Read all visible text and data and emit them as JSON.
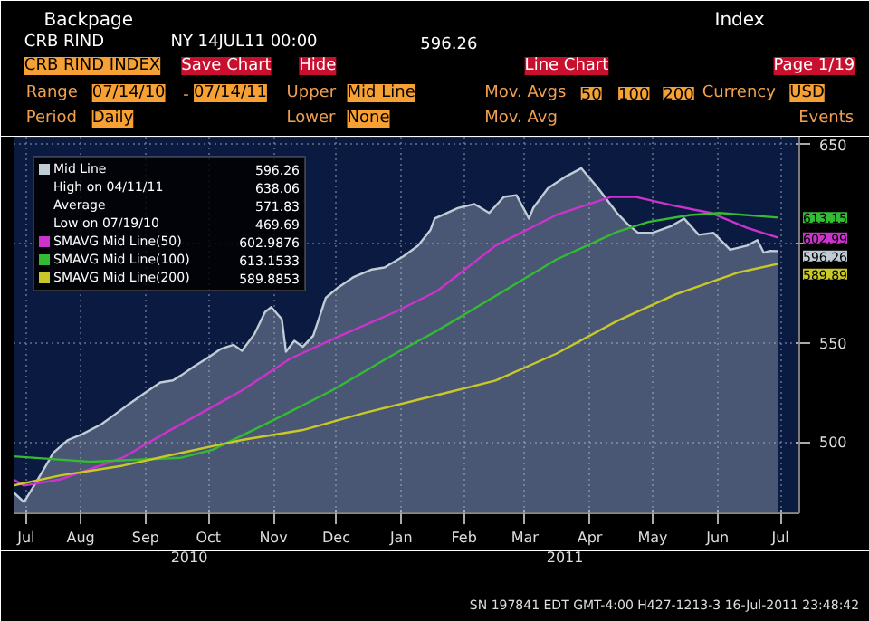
{
  "chart_data": {
    "type": "line",
    "title": "CRB RIND INDEX",
    "xlim": [
      "2010-07-14",
      "2011-07-24"
    ],
    "ylim": [
      464,
      654
    ],
    "xticks": [
      {
        "value": "2010-07-20",
        "label": "Jul"
      },
      {
        "value": "2010-08-15",
        "label": "Aug"
      },
      {
        "value": "2010-09-15",
        "label": "Sep"
      },
      {
        "value": "2010-10-15",
        "label": "Oct"
      },
      {
        "value": "2010-11-15",
        "label": "Nov"
      },
      {
        "value": "2010-12-15",
        "label": "Dec"
      },
      {
        "value": "2011-01-15",
        "label": "Jan"
      },
      {
        "value": "2011-02-14",
        "label": "Feb"
      },
      {
        "value": "2011-03-15",
        "label": "Mar"
      },
      {
        "value": "2011-04-15",
        "label": "Apr"
      },
      {
        "value": "2011-05-15",
        "label": "May"
      },
      {
        "value": "2011-06-15",
        "label": "Jun"
      },
      {
        "value": "2011-07-15",
        "label": "Jul"
      }
    ],
    "yticks": [
      500,
      550,
      {
        "value": 600,
        "label": null
      },
      650
    ],
    "grid": true,
    "legend": "top left",
    "series": [
      {
        "name": "Mid Line",
        "type": "area",
        "color": "#c0ccd6",
        "x": [
          "2010-07-14",
          "2010-07-19",
          "2010-07-25",
          "2010-08-02",
          "2010-08-09",
          "2010-08-16",
          "2010-08-25",
          "2010-08-31",
          "2010-09-07",
          "2010-09-15",
          "2010-09-22",
          "2010-09-28",
          "2010-10-02",
          "2010-10-08",
          "2010-10-15",
          "2010-10-21",
          "2010-10-27",
          "2010-10-31",
          "2010-11-06",
          "2010-11-11",
          "2010-11-14",
          "2010-11-19",
          "2010-11-21",
          "2010-11-25",
          "2010-11-29",
          "2010-12-04",
          "2010-12-10",
          "2010-12-16",
          "2010-12-23",
          "2011-01-01",
          "2011-01-07",
          "2011-01-16",
          "2011-01-23",
          "2011-01-29",
          "2011-01-31",
          "2011-02-11",
          "2011-02-19",
          "2011-02-26",
          "2011-03-05",
          "2011-03-11",
          "2011-03-17",
          "2011-03-19",
          "2011-03-26",
          "2011-04-03",
          "2011-04-11",
          "2011-04-19",
          "2011-04-28",
          "2011-05-03",
          "2011-05-08",
          "2011-05-15",
          "2011-05-24",
          "2011-05-30",
          "2011-06-06",
          "2011-06-13",
          "2011-06-21",
          "2011-06-29",
          "2011-07-04",
          "2011-07-07",
          "2011-07-10",
          "2011-07-14"
        ],
        "values": [
          474.5,
          469.69,
          480,
          494.5,
          501,
          504,
          509,
          513.6,
          519,
          525,
          530,
          531,
          533.6,
          538,
          542.7,
          547,
          549,
          546,
          554.5,
          565.5,
          568,
          562,
          545.5,
          551,
          548,
          553.6,
          572.7,
          578,
          583,
          587,
          588,
          593.6,
          599,
          607,
          612.7,
          618,
          620,
          615.5,
          623.6,
          624.5,
          612.7,
          618,
          628,
          633.6,
          638.06,
          628,
          615.5,
          610,
          605.5,
          605.5,
          609,
          612.7,
          604.5,
          605.5,
          597,
          599,
          601.8,
          595.5,
          596.4,
          596.26
        ]
      },
      {
        "name": "SMAVG Mid Line(50)",
        "color": "#cc33cc",
        "x": [
          "2010-07-14",
          "2010-07-19",
          "2010-08-05",
          "2010-09-04",
          "2010-09-26",
          "2010-10-31",
          "2010-11-23",
          "2010-12-17",
          "2011-01-12",
          "2011-02-01",
          "2011-03-01",
          "2011-03-30",
          "2011-04-25",
          "2011-05-07",
          "2011-05-26",
          "2011-06-12",
          "2011-06-29",
          "2011-07-14"
        ],
        "values": [
          481,
          478,
          481,
          492,
          505.5,
          526,
          542,
          553.6,
          565.5,
          576,
          599,
          614.5,
          623.6,
          623.6,
          619,
          615.5,
          608,
          603
        ]
      },
      {
        "name": "SMAVG Mid Line(100)",
        "color": "#33bb33",
        "x": [
          "2010-07-14",
          "2010-08-20",
          "2010-10-02",
          "2010-10-17",
          "2010-11-15",
          "2010-12-13",
          "2011-01-12",
          "2011-02-01",
          "2011-03-01",
          "2011-03-30",
          "2011-04-28",
          "2011-05-13",
          "2011-06-02",
          "2011-06-16",
          "2011-07-14"
        ],
        "values": [
          492.7,
          490,
          492,
          496,
          511,
          526,
          544.5,
          556,
          573.6,
          592,
          606,
          611,
          614.5,
          615.5,
          613.2
        ]
      },
      {
        "name": "SMAVG Mid Line(200)",
        "color": "#c8c828",
        "x": [
          "2010-07-14",
          "2010-08-05",
          "2010-09-04",
          "2010-10-02",
          "2010-10-31",
          "2010-11-29",
          "2010-12-28",
          "2011-02-01",
          "2011-03-01",
          "2011-03-30",
          "2011-04-28",
          "2011-05-26",
          "2011-06-25",
          "2011-07-14"
        ],
        "values": [
          478,
          483,
          488,
          494.5,
          501,
          506,
          514.5,
          523.6,
          531,
          544.5,
          561,
          574.5,
          585.5,
          589.9
        ]
      }
    ],
    "annotations": [
      "Backpage",
      "Index",
      "CRB RIND",
      "NY 14JUL11 00:00",
      "596.26",
      "Save Chart",
      "Hide",
      "Line Chart",
      "Page 1/19",
      "Range",
      "07/14/10",
      "-",
      "07/14/11",
      "Upper",
      "Mid Line",
      "Mov. Avgs",
      "50",
      "100",
      "200",
      "Currency",
      "USD",
      "Period",
      "Daily",
      "Lower",
      "None",
      "Mov. Avg",
      "Events",
      "High on 04/11/11",
      "638.06",
      "Average",
      "571.83",
      "Low on 07/19/10",
      "469.69",
      "596.26",
      "602.9876",
      "613.1533",
      "589.8853",
      "2010",
      "2011",
      "SN 197841 EDT GMT-4:00 H427-1213-3 16-Jul-2011 23:48:42",
      "596.26",
      "602.99",
      "613.15",
      "589.89"
    ]
  }
}
